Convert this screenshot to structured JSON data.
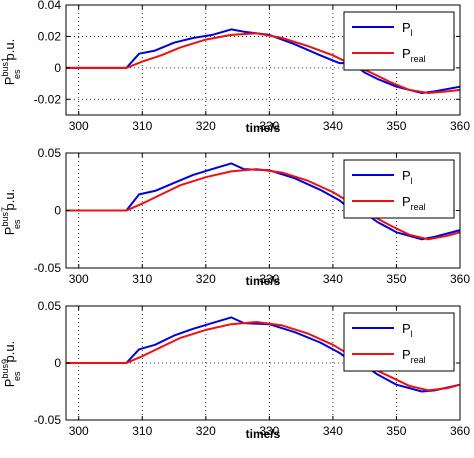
{
  "colors": {
    "series_P_l": "#0000dd",
    "series_P_real": "#ee1111",
    "axis": "#000000",
    "grid": "#000000"
  },
  "chart_data": [
    {
      "type": "line",
      "panel": "top",
      "xlabel": "time/s",
      "ylabel": {
        "base": "P",
        "sub": "es",
        "sup": "bus1",
        "tail": "p.u."
      },
      "xlim": [
        298,
        360
      ],
      "ylim": [
        -0.03,
        0.04
      ],
      "x_ticks": [
        300,
        310,
        320,
        330,
        340,
        350,
        360
      ],
      "x_tick_labels": [
        "300",
        "310",
        "320",
        "330",
        "340",
        "350",
        "360"
      ],
      "y_ticks": [
        0.04,
        0.02,
        0,
        -0.02
      ],
      "y_tick_labels": [
        "0.04",
        "0.02",
        "0",
        "-0.02"
      ],
      "grid": true,
      "legend_position": "top-right",
      "legend": [
        {
          "base": "P",
          "sub": "l",
          "color": "#0000dd"
        },
        {
          "base": "P",
          "sub": "real",
          "color": "#ee1111"
        }
      ],
      "series": [
        {
          "name": "P_l",
          "color": "#0000dd",
          "x": [
            298,
            307.5,
            309.5,
            312,
            315,
            318,
            321,
            324,
            326,
            330,
            334,
            338,
            341,
            343,
            345,
            347,
            350,
            354,
            356,
            360
          ],
          "y": [
            0,
            0,
            0.009,
            0.011,
            0.016,
            0.019,
            0.021,
            0.0245,
            0.023,
            0.021,
            0.015,
            0.008,
            0.003,
            0.003,
            -0.003,
            -0.007,
            -0.012,
            -0.016,
            -0.015,
            -0.012
          ]
        },
        {
          "name": "P_real",
          "color": "#ee1111",
          "x": [
            298,
            307.5,
            310,
            313,
            316,
            320,
            324,
            328,
            332,
            336,
            340,
            343,
            346,
            349,
            352,
            355,
            358,
            360
          ],
          "y": [
            0,
            0,
            0.004,
            0.008,
            0.013,
            0.018,
            0.021,
            0.022,
            0.019,
            0.014,
            0.008,
            0.002,
            -0.003,
            -0.009,
            -0.014,
            -0.016,
            -0.015,
            -0.014
          ]
        }
      ]
    },
    {
      "type": "line",
      "panel": "middle",
      "xlabel": "time/s",
      "ylabel": {
        "base": "P",
        "sub": "es",
        "sup": "bus7",
        "tail": "p.u."
      },
      "xlim": [
        298,
        360
      ],
      "ylim": [
        -0.05,
        0.05
      ],
      "x_ticks": [
        300,
        310,
        320,
        330,
        340,
        350,
        360
      ],
      "x_tick_labels": [
        "300",
        "310",
        "320",
        "330",
        "340",
        "350",
        "360"
      ],
      "y_ticks": [
        0.05,
        0,
        -0.05
      ],
      "y_tick_labels": [
        "0.05",
        "0",
        "-0.05"
      ],
      "grid": true,
      "legend_position": "top-right",
      "legend": [
        {
          "base": "P",
          "sub": "l",
          "color": "#0000dd"
        },
        {
          "base": "P",
          "sub": "real",
          "color": "#ee1111"
        }
      ],
      "series": [
        {
          "name": "P_l",
          "color": "#0000dd",
          "x": [
            298,
            307.5,
            309.5,
            312,
            315,
            318,
            321,
            324,
            326,
            330,
            334,
            338,
            341,
            343,
            345,
            347,
            350,
            354,
            356,
            360
          ],
          "y": [
            0,
            0,
            0.014,
            0.017,
            0.024,
            0.031,
            0.036,
            0.041,
            0.036,
            0.035,
            0.028,
            0.018,
            0.009,
            0.0,
            -0.002,
            -0.01,
            -0.019,
            -0.025,
            -0.023,
            -0.017
          ]
        },
        {
          "name": "P_real",
          "color": "#ee1111",
          "x": [
            298,
            307.5,
            310,
            313,
            316,
            320,
            324,
            328,
            332,
            336,
            340,
            343,
            346,
            349,
            352,
            355,
            358,
            360
          ],
          "y": [
            0,
            0,
            0.006,
            0.014,
            0.022,
            0.029,
            0.034,
            0.036,
            0.033,
            0.026,
            0.016,
            0.006,
            -0.004,
            -0.013,
            -0.021,
            -0.025,
            -0.022,
            -0.019
          ]
        }
      ]
    },
    {
      "type": "line",
      "panel": "bottom",
      "xlabel": "time/s",
      "ylabel": {
        "base": "P",
        "sub": "es",
        "sup": "bus9",
        "tail": "p.u."
      },
      "xlim": [
        298,
        360
      ],
      "ylim": [
        -0.05,
        0.05
      ],
      "x_ticks": [
        300,
        310,
        320,
        330,
        340,
        350,
        360
      ],
      "x_tick_labels": [
        "300",
        "310",
        "320",
        "330",
        "340",
        "350",
        "360"
      ],
      "y_ticks": [
        0.05,
        0,
        -0.05
      ],
      "y_tick_labels": [
        "0.05",
        "0",
        "-0.05"
      ],
      "grid": true,
      "legend_position": "top-right",
      "legend": [
        {
          "base": "P",
          "sub": "l",
          "color": "#0000dd"
        },
        {
          "base": "P",
          "sub": "real",
          "color": "#ee1111"
        }
      ],
      "series": [
        {
          "name": "P_l",
          "color": "#0000dd",
          "x": [
            298,
            307.5,
            309.5,
            312,
            315,
            318,
            321,
            324,
            326,
            330,
            334,
            338,
            341,
            343,
            345,
            347,
            350,
            354,
            356,
            360
          ],
          "y": [
            0,
            0,
            0.012,
            0.016,
            0.024,
            0.03,
            0.035,
            0.04,
            0.035,
            0.034,
            0.027,
            0.018,
            0.009,
            0.001,
            -0.002,
            -0.01,
            -0.019,
            -0.025,
            -0.024,
            -0.019
          ]
        },
        {
          "name": "P_real",
          "color": "#ee1111",
          "x": [
            298,
            307.5,
            310,
            313,
            316,
            320,
            324,
            328,
            332,
            336,
            340,
            343,
            346,
            349,
            352,
            355,
            358,
            360
          ],
          "y": [
            0,
            0,
            0.006,
            0.014,
            0.022,
            0.029,
            0.034,
            0.036,
            0.033,
            0.026,
            0.016,
            0.006,
            -0.004,
            -0.012,
            -0.02,
            -0.024,
            -0.022,
            -0.019
          ]
        }
      ]
    }
  ]
}
